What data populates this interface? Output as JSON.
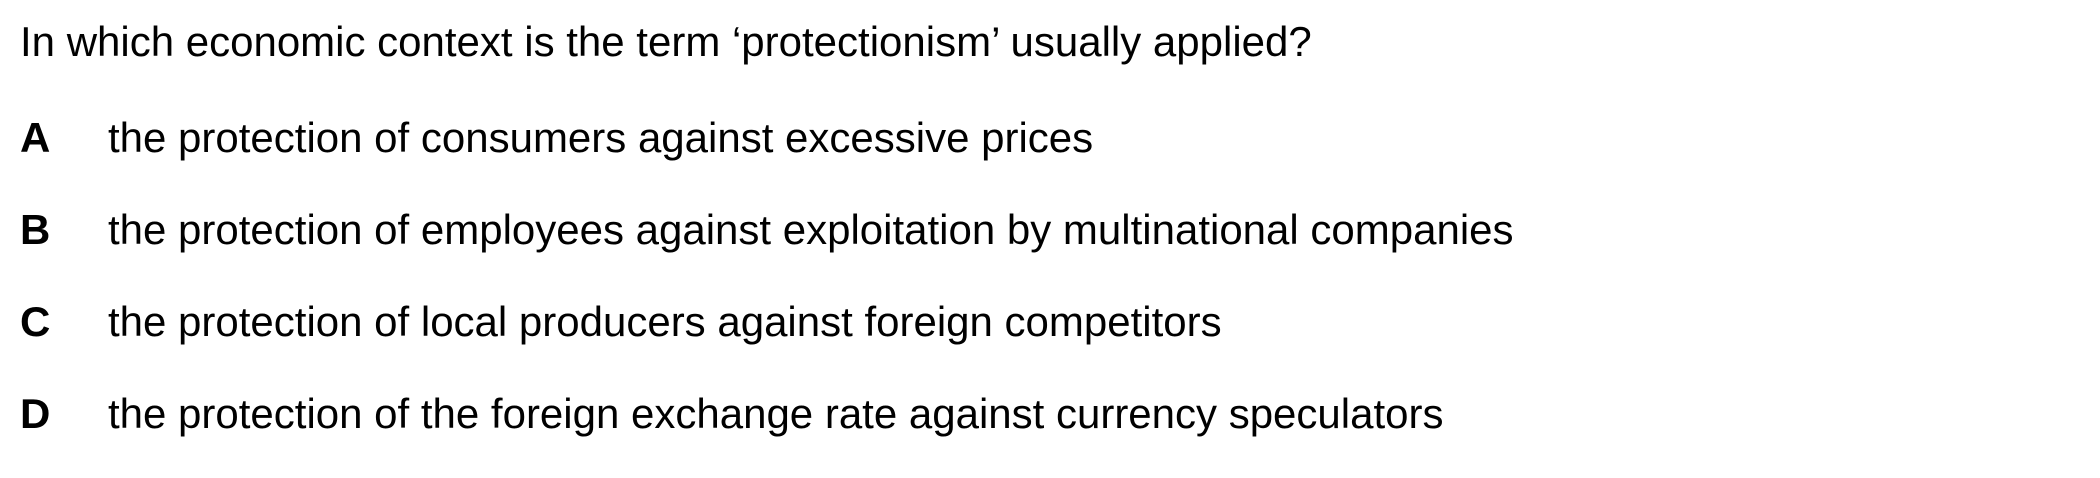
{
  "question": {
    "text": "In which economic context is the term ‘protectionism’ usually applied?"
  },
  "options": [
    {
      "letter": "A",
      "text": "the protection of consumers against excessive prices"
    },
    {
      "letter": "B",
      "text": "the protection of employees against exploitation by multinational companies"
    },
    {
      "letter": "C",
      "text": "the protection of local producers against foreign competitors"
    },
    {
      "letter": "D",
      "text": "the protection of the foreign exchange rate against currency speculators"
    }
  ]
}
